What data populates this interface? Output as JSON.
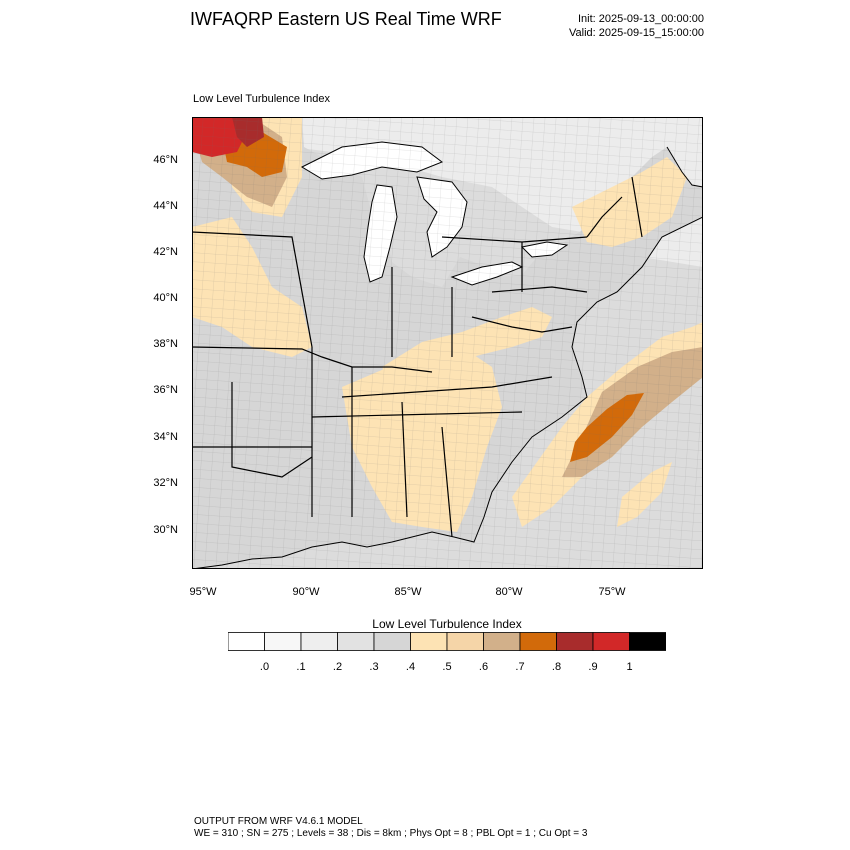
{
  "header": {
    "title": "IWFAQRP Eastern US Real Time WRF",
    "init": "Init: 2025-09-13_00:00:00",
    "valid": "Valid: 2025-09-15_15:00:00"
  },
  "map": {
    "subtitle": "Low Level Turbulence Index",
    "field": "low_level_turbulence_index",
    "lat_labels": [
      "46°N",
      "44°N",
      "42°N",
      "40°N",
      "38°N",
      "36°N",
      "34°N",
      "32°N",
      "30°N"
    ],
    "lon_labels": [
      "95°W",
      "90°W",
      "85°W",
      "80°W",
      "75°W"
    ],
    "colors": {
      "land_base": "#dcdcdc",
      "water": "#ffffff",
      "county_lines": "#6b6b6b",
      "state_lines": "#000000"
    }
  },
  "colorbar": {
    "title": "Low Level Turbulence Index",
    "labels": [
      ".0",
      ".1",
      ".2",
      ".3",
      ".4",
      ".5",
      ".6",
      ".7",
      ".8",
      ".9",
      "1"
    ],
    "colors": [
      "#ffffff",
      "#f7f7f7",
      "#eeeeee",
      "#e2e2e2",
      "#d6d6d6",
      "#fde3b4",
      "#f5d5a8",
      "#d2b08a",
      "#d26a0a",
      "#a82c2c",
      "#d22828",
      "#000000"
    ]
  },
  "footer": {
    "line1": "OUTPUT FROM WRF V4.6.1 MODEL",
    "line2": "WE = 310 ; SN = 275 ; Levels = 38 ; Dis = 8km ; Phys Opt = 8 ; PBL Opt = 1 ; Cu Opt = 3"
  }
}
